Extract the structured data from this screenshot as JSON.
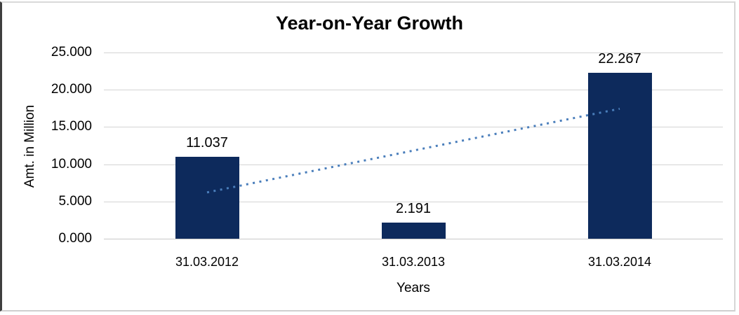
{
  "chart_data": {
    "type": "bar",
    "title": "Year-on-Year Growth",
    "xlabel": "Years",
    "ylabel": "Amt. in Million",
    "categories": [
      "31.03.2012",
      "31.03.2013",
      "31.03.2014"
    ],
    "values": [
      11.037,
      2.191,
      22.267
    ],
    "value_labels": [
      "11.037",
      "2.191",
      "22.267"
    ],
    "ylim": [
      0,
      25
    ],
    "y_ticks": [
      {
        "value": 0,
        "label": "0.000"
      },
      {
        "value": 5,
        "label": "5.000"
      },
      {
        "value": 10,
        "label": "10.000"
      },
      {
        "value": 15,
        "label": "15.000"
      },
      {
        "value": 20,
        "label": "20.000"
      },
      {
        "value": 25,
        "label": "25.000"
      }
    ],
    "grid": "horizontal-only",
    "legend": "none",
    "trendline": {
      "type": "linear",
      "style": "dotted",
      "start_value": 6.217,
      "end_value": 17.447
    },
    "colors": {
      "bar": "#0d2a5c",
      "trendline": "#4a7ebb",
      "gridline": "#d3d3d3",
      "baseline": "#c9c9c9",
      "text": "#000000",
      "background": "#ffffff",
      "frame_border": "#d9d9d9",
      "frame_border_left": "#3f3f3f"
    }
  }
}
